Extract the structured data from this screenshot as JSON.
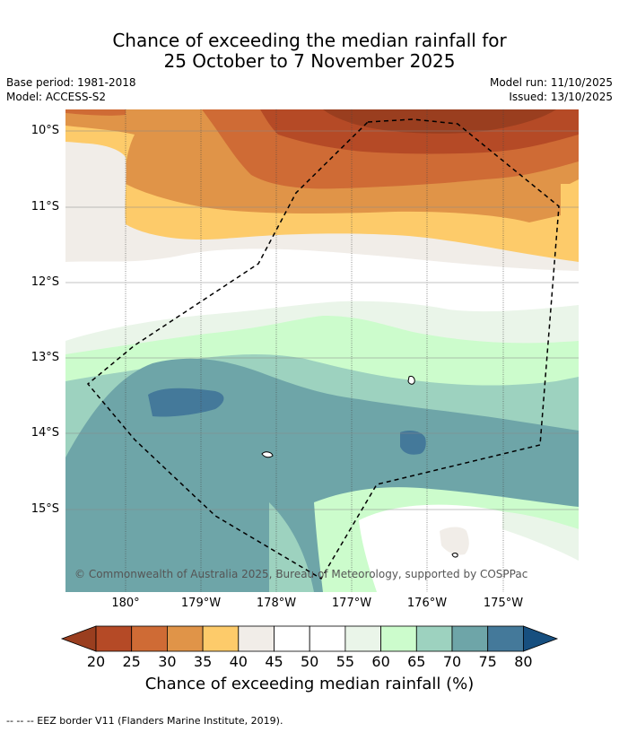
{
  "title_line1": "Chance of exceeding the median rainfall for",
  "title_line2": "25 October to 7 November 2025",
  "base_period": "Base period: 1981-2018",
  "model": "Model: ACCESS-S2",
  "model_run": "Model run: 11/10/2025",
  "issued": "Issued: 13/10/2025",
  "lat_labels": [
    "10°S",
    "11°S",
    "12°S",
    "13°S",
    "14°S",
    "15°S"
  ],
  "lon_labels": [
    "180°",
    "179°W",
    "178°W",
    "177°W",
    "176°W",
    "175°W"
  ],
  "copyright": "© Commonwealth of Australia 2025, Bureau of Meteorology, supported by COSPPac",
  "colorbar": {
    "ticks": [
      "20",
      "25",
      "30",
      "35",
      "40",
      "45",
      "50",
      "55",
      "60",
      "65",
      "70",
      "75",
      "80"
    ],
    "colors": [
      "#9a3e1f",
      "#b54a26",
      "#cf6b35",
      "#e09448",
      "#fdcb6a",
      "#f1ede8",
      "#ffffff",
      "#ffffff",
      "#eaf5e9",
      "#ccfccc",
      "#9dd2bf",
      "#6ea5a8",
      "#44799a",
      "#174f7f"
    ],
    "label": "Chance of exceeding median rainfall (%)"
  },
  "footer": "--  --  -- EEZ border V11 (Flanders Marine Institute, 2019)."
}
